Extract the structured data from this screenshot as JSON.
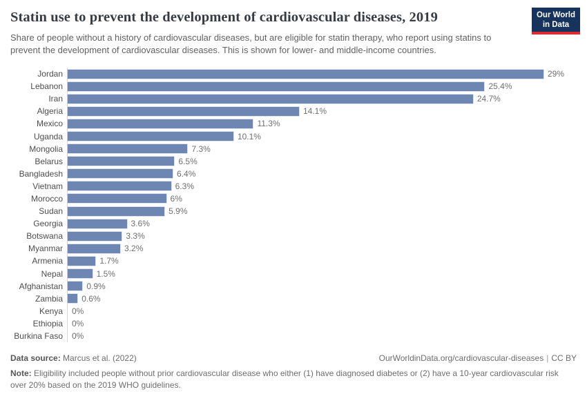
{
  "header": {
    "logo_line1": "Our World",
    "logo_line2": "in Data"
  },
  "chart_data": {
    "type": "bar",
    "orientation": "horizontal",
    "title": "Statin use to prevent the development of cardiovascular diseases, 2019",
    "subtitle": "Share of people without a history of cardiovascular diseases, but are eligible for statin therapy, who report using statins to prevent the development of cardiovascular diseases. This is shown for lower- and middle-income countries.",
    "categories": [
      "Jordan",
      "Lebanon",
      "Iran",
      "Algeria",
      "Mexico",
      "Uganda",
      "Mongolia",
      "Belarus",
      "Bangladesh",
      "Vietnam",
      "Morocco",
      "Sudan",
      "Georgia",
      "Botswana",
      "Myanmar",
      "Armenia",
      "Nepal",
      "Afghanistan",
      "Zambia",
      "Kenya",
      "Ethiopia",
      "Burkina Faso"
    ],
    "values": [
      29,
      25.4,
      24.7,
      14.1,
      11.3,
      10.1,
      7.3,
      6.5,
      6.4,
      6.3,
      6,
      5.9,
      3.6,
      3.3,
      3.2,
      1.7,
      1.5,
      0.9,
      0.6,
      0,
      0,
      0
    ],
    "value_labels": [
      "29%",
      "25.4%",
      "24.7%",
      "14.1%",
      "11.3%",
      "10.1%",
      "7.3%",
      "6.5%",
      "6.4%",
      "6.3%",
      "6%",
      "5.9%",
      "3.6%",
      "3.3%",
      "3.2%",
      "1.7%",
      "1.5%",
      "0.9%",
      "0.6%",
      "0%",
      "0%",
      "0%"
    ],
    "xlim": [
      0,
      29
    ],
    "xlabel": "",
    "ylabel": "",
    "grid": false,
    "legend": "none",
    "bar_color": "#6e87b2",
    "axis_line_color": "#d6d6d6"
  },
  "footer": {
    "datasource_label": "Data source:",
    "datasource_value": " Marcus et al. (2022)",
    "link": "OurWorldinData.org/cardiovascular-diseases",
    "separator": "|",
    "license": "CC BY",
    "note_label": "Note:",
    "note_text": " Eligibility included people without prior cardiovascular disease who either (1) have diagnosed diabetes or (2) have a 10-year cardiovascular risk over 20% based on the 2019 WHO guidelines."
  },
  "colors": {
    "bar": "#6e87b2",
    "logo_background": "#16335e",
    "logo_stripe": "#dc2c33",
    "title_text": "#363c43",
    "subtitle_text": "#616161",
    "label_text": "#4c4c4c",
    "value_text": "#6e6e6e"
  }
}
